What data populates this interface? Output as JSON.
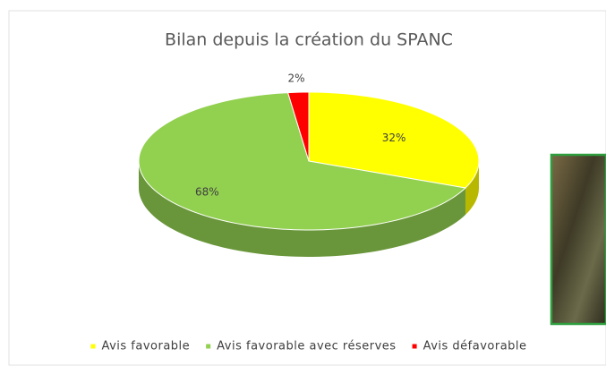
{
  "chart_data": {
    "type": "pie",
    "title": "Bilan depuis la création du SPANC",
    "categories": [
      "Avis favorable",
      "Avis favorable avec réserves",
      "Avis défavorable"
    ],
    "values": [
      32,
      68,
      2
    ],
    "value_labels": [
      "32%",
      "68%",
      "2%"
    ],
    "colors": [
      "#ffff00",
      "#92d050",
      "#ff0000"
    ],
    "legend": "bottom"
  }
}
